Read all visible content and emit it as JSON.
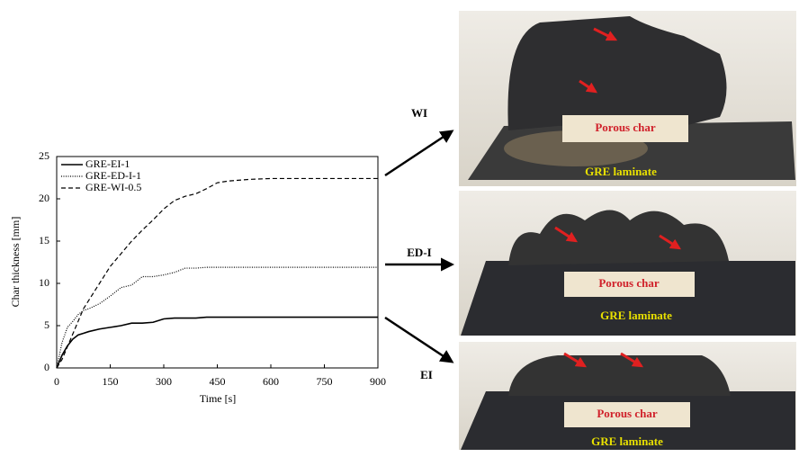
{
  "chart_data": {
    "type": "line",
    "x_label": "Time [s]",
    "y_label": "Char thickness [mm]",
    "x": [
      0,
      15,
      30,
      45,
      60,
      75,
      90,
      120,
      150,
      180,
      210,
      240,
      270,
      300,
      330,
      360,
      390,
      420,
      450,
      480,
      540,
      600,
      660,
      720,
      780,
      840,
      900
    ],
    "series": [
      {
        "name": "GRE-EI-1",
        "color": "#000000",
        "dash": "solid",
        "values": [
          0,
          1.5,
          2.6,
          3.4,
          3.9,
          4.1,
          4.3,
          4.6,
          4.8,
          5.0,
          5.3,
          5.3,
          5.4,
          5.8,
          5.9,
          5.9,
          5.9,
          6.0,
          6.0,
          6.0,
          6.0,
          6.0,
          6.0,
          6.0,
          6.0,
          6.0,
          6.0
        ]
      },
      {
        "name": "GRE-ED-I-1",
        "color": "#000000",
        "dash": "dotted",
        "values": [
          0,
          3.0,
          4.8,
          5.5,
          6.3,
          6.8,
          7.0,
          7.6,
          8.5,
          9.5,
          9.8,
          10.8,
          10.8,
          11.0,
          11.3,
          11.8,
          11.8,
          11.9,
          11.9,
          11.9,
          11.9,
          11.9,
          11.9,
          11.9,
          11.9,
          11.9,
          11.9
        ]
      },
      {
        "name": "GRE-WI-0.5",
        "color": "#000000",
        "dash": "dashed",
        "values": [
          0,
          1.0,
          2.5,
          4.0,
          5.5,
          7.0,
          8.0,
          10.0,
          12.0,
          13.5,
          15.0,
          16.3,
          17.5,
          18.8,
          19.8,
          20.3,
          20.6,
          21.2,
          21.9,
          22.1,
          22.3,
          22.4,
          22.4,
          22.4,
          22.4,
          22.4,
          22.4
        ]
      }
    ],
    "xlim": [
      0,
      900
    ],
    "xticks": [
      0,
      150,
      300,
      450,
      600,
      750,
      900
    ],
    "ylim": [
      0,
      25
    ],
    "yticks": [
      0,
      5,
      10,
      15,
      20,
      25
    ],
    "grid": false,
    "legend": "top-left"
  },
  "panels": [
    {
      "label": "WI",
      "char": "Porous char",
      "laminate": "GRE laminate"
    },
    {
      "label": "ED-I",
      "char": "Porous char",
      "laminate": "GRE laminate"
    },
    {
      "label": "EI",
      "char": "Porous char",
      "laminate": "GRE laminate"
    }
  ]
}
